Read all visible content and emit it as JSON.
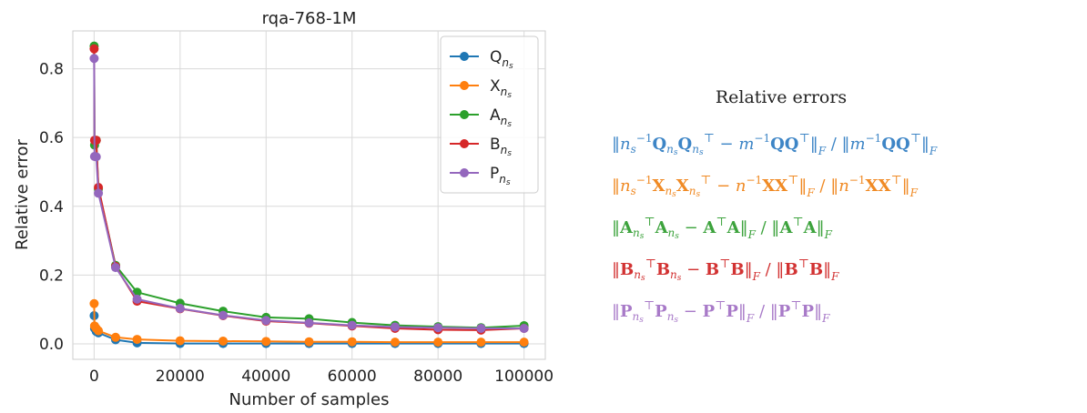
{
  "chart_data": {
    "type": "line",
    "title": "rqa-768-1M",
    "xlabel": "Number of samples",
    "ylabel": "Relative error",
    "xlim": [
      -4950,
      104950
    ],
    "ylim": [
      -0.045,
      0.91
    ],
    "xticks": [
      0,
      20000,
      40000,
      60000,
      80000,
      100000
    ],
    "yticks": [
      0.0,
      0.2,
      0.4,
      0.6,
      0.8
    ],
    "xtick_labels": [
      "0",
      "20000",
      "40000",
      "60000",
      "80000",
      "100000"
    ],
    "ytick_labels": [
      "0.0",
      "0.2",
      "0.4",
      "0.6",
      "0.8"
    ],
    "grid": true,
    "legend": "top-right",
    "x": [
      10,
      100,
      500,
      1000,
      5000,
      10000,
      20000,
      30000,
      40000,
      50000,
      60000,
      70000,
      80000,
      90000,
      100000
    ],
    "series": [
      {
        "name": "Q",
        "subscript": "ns",
        "color": "#1f77b4",
        "values": [
          0.082,
          0.045,
          0.036,
          0.032,
          0.012,
          0.003,
          0.001,
          0.001,
          0.001,
          0.001,
          0.001,
          0.001,
          0.001,
          0.001,
          0.001
        ]
      },
      {
        "name": "X",
        "subscript": "ns",
        "color": "#ff7f0e",
        "values": [
          0.117,
          0.052,
          0.045,
          0.038,
          0.019,
          0.013,
          0.009,
          0.008,
          0.007,
          0.006,
          0.006,
          0.005,
          0.005,
          0.005,
          0.005
        ]
      },
      {
        "name": "A",
        "subscript": "ns",
        "color": "#2ca02c",
        "values": [
          0.866,
          0.578,
          0.592,
          0.451,
          0.228,
          0.15,
          0.118,
          0.095,
          0.077,
          0.073,
          0.062,
          0.054,
          0.05,
          0.047,
          0.053
        ]
      },
      {
        "name": "B",
        "subscript": "ns",
        "color": "#d62728",
        "values": [
          0.858,
          0.592,
          0.592,
          0.455,
          0.225,
          0.124,
          0.102,
          0.082,
          0.066,
          0.06,
          0.052,
          0.045,
          0.041,
          0.04,
          0.045
        ]
      },
      {
        "name": "P",
        "subscript": "ns",
        "color": "#9467bd",
        "values": [
          0.83,
          0.545,
          0.544,
          0.438,
          0.222,
          0.13,
          0.103,
          0.083,
          0.068,
          0.061,
          0.054,
          0.049,
          0.047,
          0.045,
          0.045
        ]
      }
    ]
  },
  "formula_panel": {
    "title": "Relative errors",
    "colors": [
      "#3d85c6",
      "#f08a24",
      "#3da33d",
      "#d23232",
      "#a87ac8"
    ]
  }
}
